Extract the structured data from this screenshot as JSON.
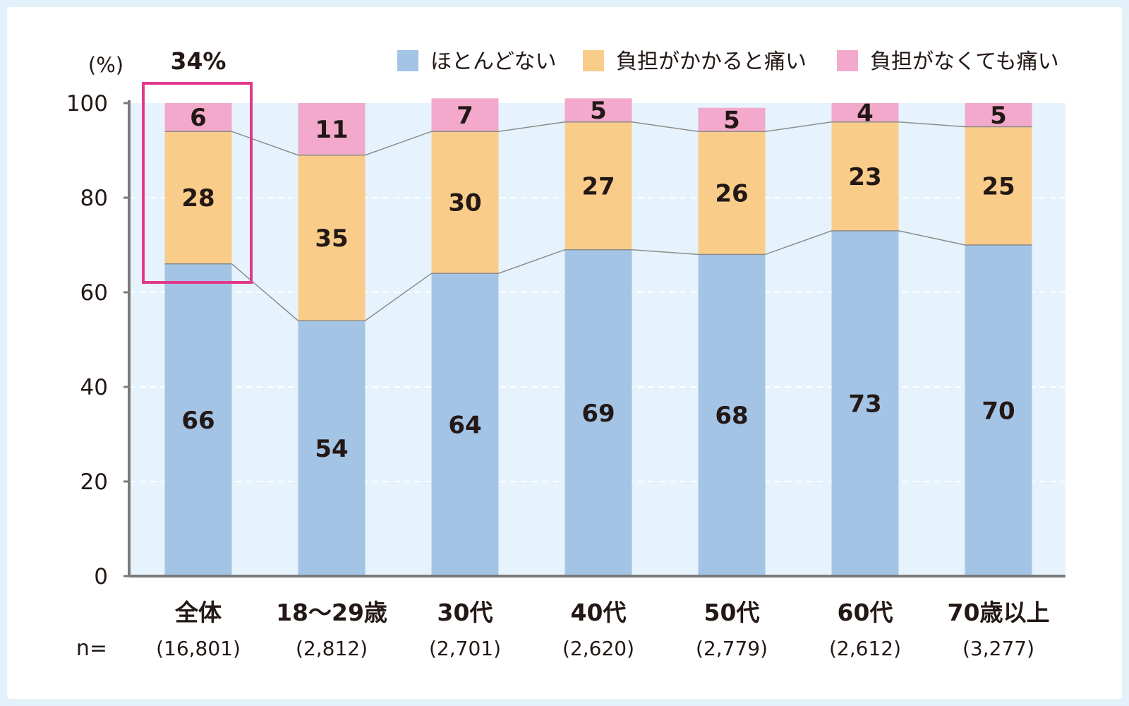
{
  "chart_data": {
    "type": "bar",
    "stacked": true,
    "unit_label": "(%)",
    "ylim": [
      0,
      100
    ],
    "yticks": [
      "0",
      "20",
      "40",
      "60",
      "80",
      "100"
    ],
    "grid": true,
    "legend_position": "top-right",
    "categories": [
      "全体",
      "18〜29歳",
      "30代",
      "40代",
      "50代",
      "60代",
      "70歳以上"
    ],
    "n_prefix": "n=",
    "n_values": [
      "(16,801)",
      "(2,812)",
      "(2,701)",
      "(2,620)",
      "(2,779)",
      "(2,612)",
      "(3,277)"
    ],
    "series": [
      {
        "name": "ほとんどない",
        "color": "#a4c4e6",
        "values": [
          66,
          54,
          64,
          69,
          68,
          73,
          70
        ]
      },
      {
        "name": "負担がかかると痛い",
        "color": "#f9cc8a",
        "values": [
          28,
          35,
          30,
          27,
          26,
          23,
          25
        ]
      },
      {
        "name": "負担がなくても痛い",
        "color": "#f3a9cb",
        "values": [
          6,
          11,
          7,
          5,
          5,
          4,
          5
        ]
      }
    ],
    "highlight": {
      "category_index": 0,
      "label": "34%",
      "color": "#e2388b"
    },
    "colors": {
      "plot_bg": "#e6f3fc",
      "axis": "#7a7a7a",
      "connector": "#8c8c8c"
    }
  }
}
